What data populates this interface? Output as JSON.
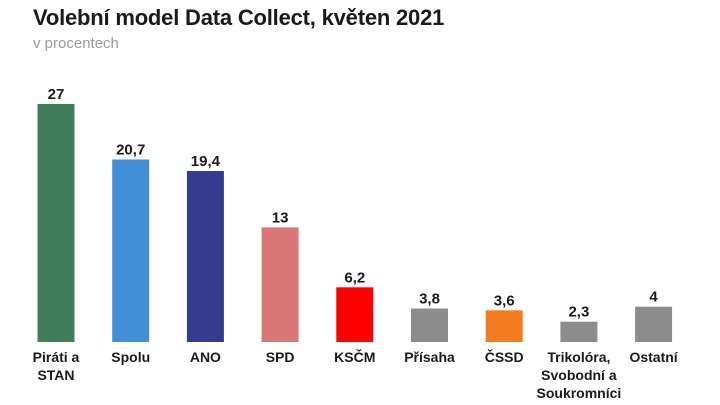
{
  "chart_data": {
    "type": "bar",
    "title": "Volební model Data Collect, květen 2021",
    "subtitle": "v procentech",
    "categories": [
      "Piráti a STAN",
      "Spolu",
      "ANO",
      "SPD",
      "KSČM",
      "Přísaha",
      "ČSSD",
      "Trikolóra, Svobodní a Soukromníci",
      "Ostatní"
    ],
    "category_lines": [
      [
        "Piráti a",
        "STAN"
      ],
      [
        "Spolu"
      ],
      [
        "ANO"
      ],
      [
        "SPD"
      ],
      [
        "KSČM"
      ],
      [
        "Přísaha"
      ],
      [
        "ČSSD"
      ],
      [
        "Trikolóra,",
        "Svobodní a",
        "Soukromníci"
      ],
      [
        "Ostatní"
      ]
    ],
    "values": [
      27,
      20.7,
      19.4,
      13,
      6.2,
      3.8,
      3.6,
      2.3,
      4
    ],
    "value_labels": [
      "27",
      "20,7",
      "19,4",
      "13",
      "6,2",
      "3,8",
      "3,6",
      "2,3",
      "4"
    ],
    "colors": [
      "#3f7c5a",
      "#418fd6",
      "#353c8f",
      "#d97676",
      "#ff0000",
      "#8c8c8c",
      "#f47c20",
      "#8c8c8c",
      "#8c8c8c"
    ],
    "ylim": [
      0,
      27
    ],
    "grid": false,
    "legend": "none"
  }
}
